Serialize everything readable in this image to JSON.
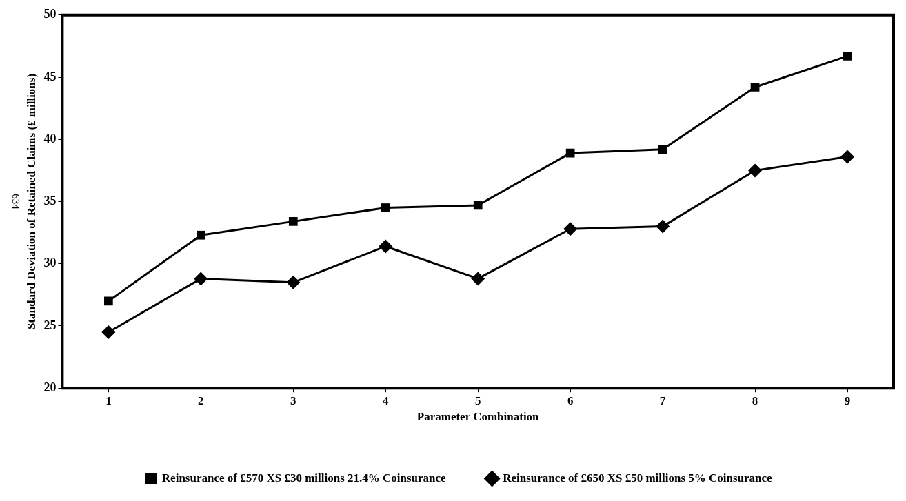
{
  "chart_data": {
    "type": "line",
    "xlabel": "Parameter Combination",
    "ylabel": "Standard Deviation of Retained Claims (£ millions)",
    "categories": [
      "1",
      "2",
      "3",
      "4",
      "5",
      "6",
      "7",
      "8",
      "9"
    ],
    "series": [
      {
        "name": "Reinsurance of £570 XS £30 millions 21.4% Coinsurance",
        "color": "#000000",
        "marker": "square",
        "values": [
          27.0,
          32.3,
          33.4,
          34.5,
          34.7,
          38.9,
          39.2,
          44.2,
          46.7
        ]
      },
      {
        "name": "Reinsurance of £650 XS £50 millions 5% Coinsurance",
        "color": "#000000",
        "marker": "diamond",
        "values": [
          24.5,
          28.8,
          28.5,
          31.4,
          28.8,
          32.8,
          33.0,
          37.5,
          38.6
        ]
      }
    ],
    "ylim": [
      20,
      50
    ],
    "yticks": [
      20,
      25,
      30,
      35,
      40,
      45,
      50
    ],
    "grid": false,
    "legend": "bottom",
    "line_style": "solid",
    "annotations": [
      "634"
    ]
  }
}
